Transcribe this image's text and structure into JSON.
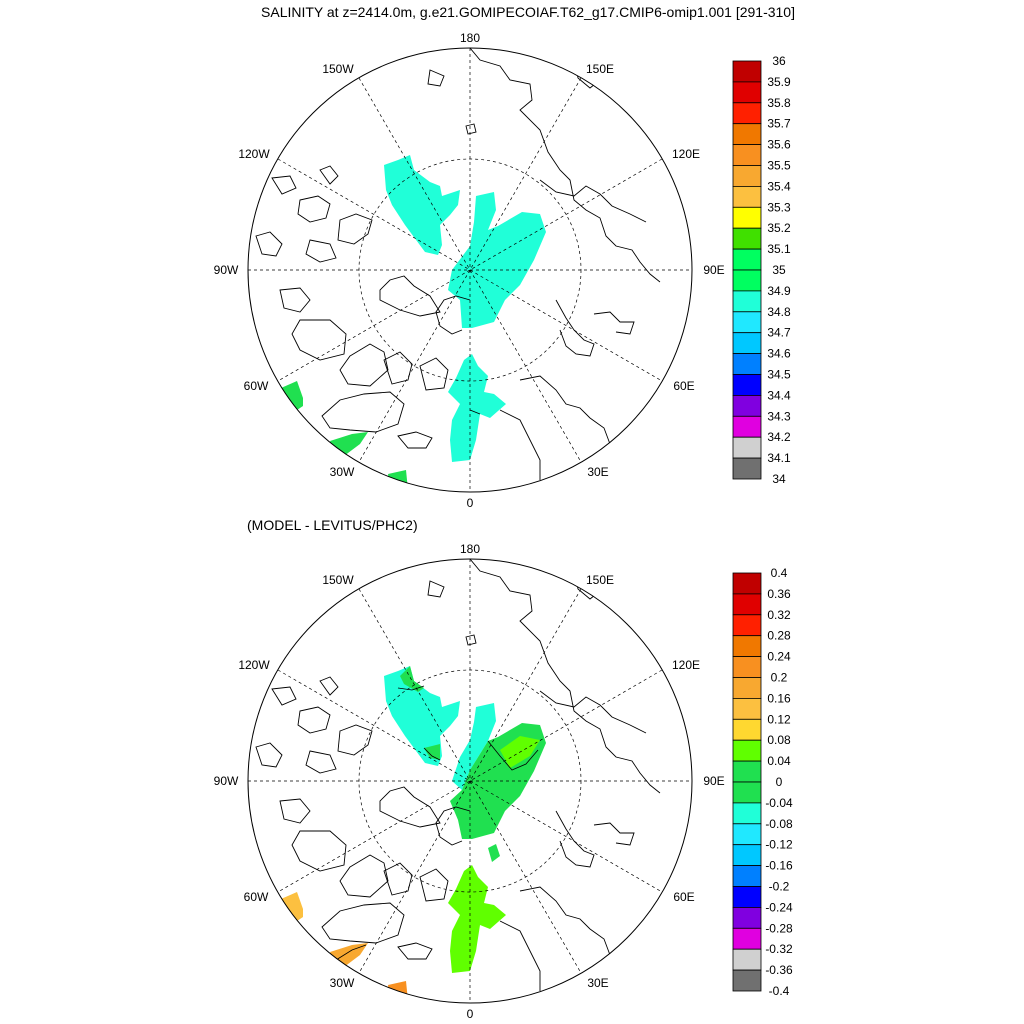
{
  "figure": {
    "title": "SALINITY at z=2414.0m, g.e21.GOMIPECOIAF.T62_g17.CMIP6-omip1.001 [291-310]",
    "subtitle": "(MODEL - LEVITUS/PHC2)"
  },
  "map_labels": {
    "lon_180": "180",
    "lon_0": "0",
    "lon_150w": "150W",
    "lon_150e": "150E",
    "lon_120w": "120W",
    "lon_120e": "120E",
    "lon_90w": "90W",
    "lon_90e": "90E",
    "lon_60w": "60W",
    "lon_60e": "60E",
    "lon_30w": "30W",
    "lon_30e": "30E"
  },
  "panels": [
    {
      "name": "salinity",
      "colorbar": {
        "labels": [
          "36",
          "35.9",
          "35.8",
          "35.7",
          "35.6",
          "35.5",
          "35.4",
          "35.3",
          "35.2",
          "35.1",
          "35",
          "34.9",
          "34.8",
          "34.7",
          "34.6",
          "34.5",
          "34.4",
          "34.3",
          "34.2",
          "34.1",
          "34"
        ],
        "colors": [
          "#c00000",
          "#e00000",
          "#ff2000",
          "#f07800",
          "#f89020",
          "#f8a830",
          "#fcc040",
          "#ffff00",
          "#40e000",
          "#00ff60",
          "#20ffd8",
          "#20e8ff",
          "#00c8ff",
          "#0080ff",
          "#0000ff",
          "#8000e0",
          "#e000e0",
          "#d0d0d0",
          "#707070"
        ]
      }
    },
    {
      "name": "difference",
      "colorbar": {
        "labels": [
          "0.4",
          "0.36",
          "0.32",
          "0.28",
          "0.24",
          "0.2",
          "0.16",
          "0.12",
          "0.08",
          "0.04",
          "0",
          "-0.04",
          "-0.08",
          "-0.12",
          "-0.16",
          "-0.2",
          "-0.24",
          "-0.28",
          "-0.32",
          "-0.36",
          "-0.4"
        ],
        "colors": [
          "#c00000",
          "#e00000",
          "#ff2000",
          "#f07800",
          "#f89020",
          "#f8a830",
          "#fcc040",
          "#ffd830",
          "#60ff00",
          "#20e050",
          "#20ffd8",
          "#20e8ff",
          "#00c8ff",
          "#0080ff",
          "#0000ff",
          "#8000e0",
          "#e000e0",
          "#d0d0d0",
          "#707070"
        ]
      }
    }
  ],
  "style": {
    "ocean_field_top": "#20ffd8",
    "ocean_field_diff_pos": "#20e050",
    "ocean_field_diff_green": "#60ff00",
    "ocean_field_diff_neg": "#20ffd8",
    "ocean_field_diff_orange": "#fcc040",
    "atlantic_top": "#20e050"
  }
}
